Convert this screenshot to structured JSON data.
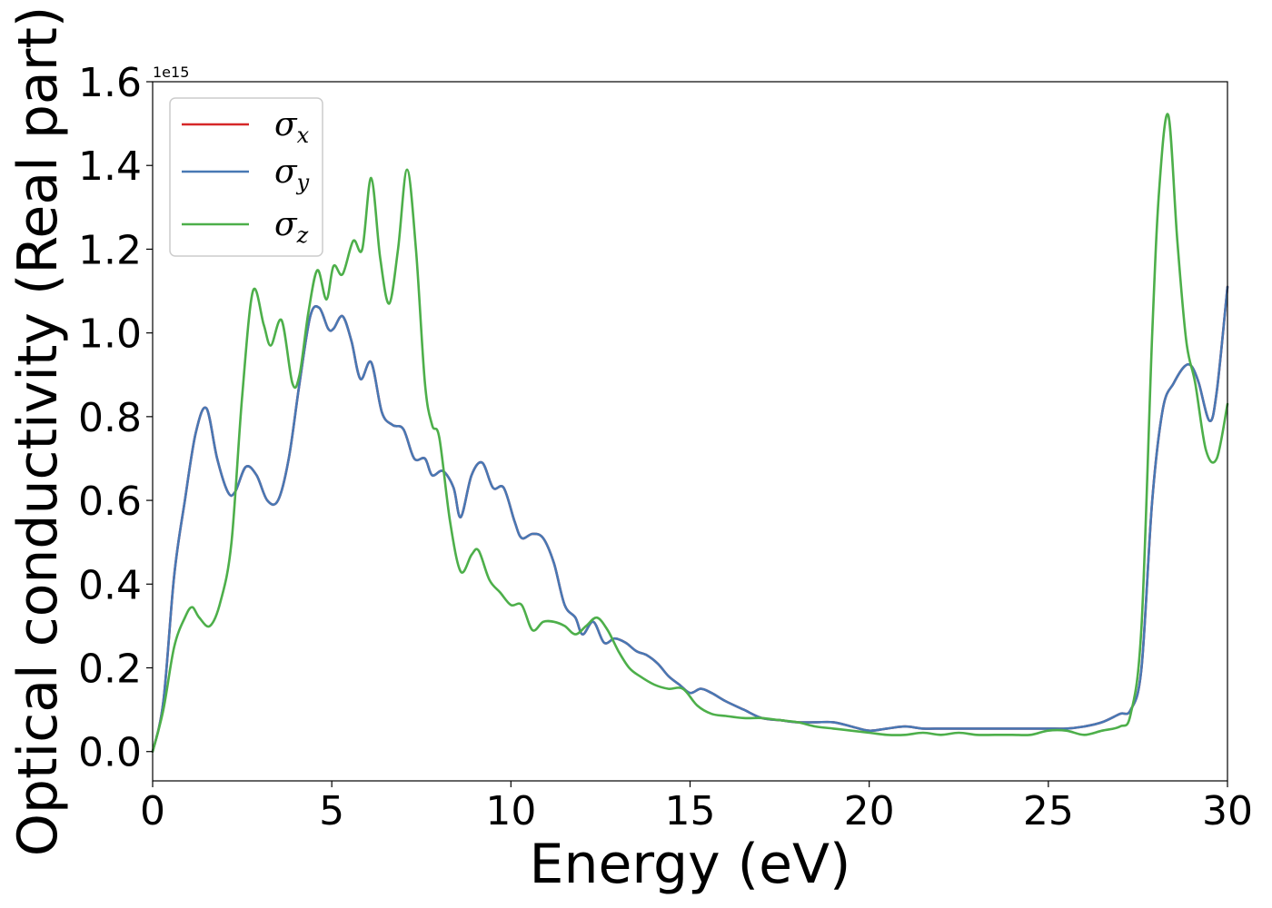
{
  "chart_data": {
    "type": "line",
    "xlabel": "Energy (eV)",
    "ylabel": "Optical conductivity (Real part)",
    "y_offset_label": "1e15",
    "xlim": [
      0,
      30
    ],
    "ylim": [
      -0.07,
      1.6
    ],
    "x_ticks": [
      0,
      5,
      10,
      15,
      20,
      25,
      30
    ],
    "x_tick_labels": [
      "0",
      "5",
      "10",
      "15",
      "20",
      "25",
      "30"
    ],
    "y_ticks": [
      0.0,
      0.2,
      0.4,
      0.6,
      0.8,
      1.0,
      1.2,
      1.4,
      1.6
    ],
    "y_tick_labels": [
      "0.0",
      "0.2",
      "0.4",
      "0.6",
      "0.8",
      "1.0",
      "1.2",
      "1.4",
      "1.6"
    ],
    "grid": false,
    "legend_position": "top-left",
    "series": [
      {
        "name": "σx",
        "symbol": "σ",
        "subscript": "x",
        "color": "#d62728",
        "x": [
          0,
          0.3,
          0.6,
          0.9,
          1.2,
          1.5,
          1.8,
          2.1,
          2.3,
          2.6,
          2.9,
          3.2,
          3.5,
          3.8,
          4.1,
          4.4,
          4.65,
          4.9,
          5.05,
          5.3,
          5.55,
          5.8,
          6.1,
          6.4,
          6.7,
          7.0,
          7.3,
          7.6,
          7.8,
          8.1,
          8.4,
          8.6,
          8.9,
          9.2,
          9.5,
          9.8,
          10.1,
          10.3,
          10.6,
          10.9,
          11.2,
          11.5,
          11.8,
          12.0,
          12.3,
          12.6,
          12.9,
          13.2,
          13.5,
          13.8,
          14.1,
          14.4,
          14.7,
          15.0,
          15.3,
          15.6,
          16.0,
          16.5,
          17.0,
          17.5,
          18.0,
          18.5,
          19.0,
          19.5,
          20.0,
          20.5,
          21.0,
          21.5,
          22.0,
          22.5,
          23.0,
          23.5,
          24.0,
          24.5,
          25.0,
          25.5,
          26.0,
          26.5,
          27.0,
          27.3,
          27.6,
          27.9,
          28.2,
          28.5,
          28.8,
          29.0,
          29.2,
          29.5,
          29.7,
          30.0
        ],
        "values": [
          0.0,
          0.12,
          0.42,
          0.6,
          0.76,
          0.82,
          0.7,
          0.62,
          0.62,
          0.68,
          0.66,
          0.6,
          0.6,
          0.7,
          0.88,
          1.04,
          1.06,
          1.01,
          1.01,
          1.04,
          0.98,
          0.89,
          0.93,
          0.81,
          0.78,
          0.77,
          0.7,
          0.7,
          0.66,
          0.67,
          0.63,
          0.56,
          0.66,
          0.69,
          0.63,
          0.63,
          0.55,
          0.51,
          0.52,
          0.51,
          0.45,
          0.35,
          0.32,
          0.28,
          0.31,
          0.26,
          0.27,
          0.26,
          0.24,
          0.23,
          0.21,
          0.18,
          0.16,
          0.14,
          0.15,
          0.14,
          0.12,
          0.1,
          0.08,
          0.075,
          0.07,
          0.07,
          0.07,
          0.06,
          0.05,
          0.055,
          0.06,
          0.055,
          0.055,
          0.055,
          0.055,
          0.055,
          0.055,
          0.055,
          0.055,
          0.055,
          0.06,
          0.07,
          0.09,
          0.1,
          0.2,
          0.6,
          0.82,
          0.88,
          0.92,
          0.92,
          0.88,
          0.79,
          0.86,
          1.11
        ]
      },
      {
        "name": "σy",
        "symbol": "σ",
        "subscript": "y",
        "color": "#4878b4",
        "x": [
          0,
          0.3,
          0.6,
          0.9,
          1.2,
          1.5,
          1.8,
          2.1,
          2.3,
          2.6,
          2.9,
          3.2,
          3.5,
          3.8,
          4.1,
          4.4,
          4.65,
          4.9,
          5.05,
          5.3,
          5.55,
          5.8,
          6.1,
          6.4,
          6.7,
          7.0,
          7.3,
          7.6,
          7.8,
          8.1,
          8.4,
          8.6,
          8.9,
          9.2,
          9.5,
          9.8,
          10.1,
          10.3,
          10.6,
          10.9,
          11.2,
          11.5,
          11.8,
          12.0,
          12.3,
          12.6,
          12.9,
          13.2,
          13.5,
          13.8,
          14.1,
          14.4,
          14.7,
          15.0,
          15.3,
          15.6,
          16.0,
          16.5,
          17.0,
          17.5,
          18.0,
          18.5,
          19.0,
          19.5,
          20.0,
          20.5,
          21.0,
          21.5,
          22.0,
          22.5,
          23.0,
          23.5,
          24.0,
          24.5,
          25.0,
          25.5,
          26.0,
          26.5,
          27.0,
          27.3,
          27.6,
          27.9,
          28.2,
          28.5,
          28.8,
          29.0,
          29.2,
          29.5,
          29.7,
          30.0
        ],
        "values": [
          0.0,
          0.12,
          0.42,
          0.6,
          0.76,
          0.82,
          0.7,
          0.62,
          0.62,
          0.68,
          0.66,
          0.6,
          0.6,
          0.7,
          0.88,
          1.04,
          1.06,
          1.01,
          1.01,
          1.04,
          0.98,
          0.89,
          0.93,
          0.81,
          0.78,
          0.77,
          0.7,
          0.7,
          0.66,
          0.67,
          0.63,
          0.56,
          0.66,
          0.69,
          0.63,
          0.63,
          0.55,
          0.51,
          0.52,
          0.51,
          0.45,
          0.35,
          0.32,
          0.28,
          0.31,
          0.26,
          0.27,
          0.26,
          0.24,
          0.23,
          0.21,
          0.18,
          0.16,
          0.14,
          0.15,
          0.14,
          0.12,
          0.1,
          0.08,
          0.075,
          0.07,
          0.07,
          0.07,
          0.06,
          0.05,
          0.055,
          0.06,
          0.055,
          0.055,
          0.055,
          0.055,
          0.055,
          0.055,
          0.055,
          0.055,
          0.055,
          0.06,
          0.07,
          0.09,
          0.1,
          0.2,
          0.6,
          0.82,
          0.88,
          0.92,
          0.92,
          0.88,
          0.79,
          0.86,
          1.11
        ]
      },
      {
        "name": "σz",
        "symbol": "σ",
        "subscript": "z",
        "color": "#4daf4a",
        "x": [
          0,
          0.3,
          0.6,
          0.9,
          1.1,
          1.3,
          1.6,
          1.9,
          2.2,
          2.5,
          2.8,
          3.1,
          3.3,
          3.6,
          3.9,
          4.1,
          4.35,
          4.6,
          4.85,
          5.05,
          5.3,
          5.6,
          5.85,
          6.1,
          6.35,
          6.6,
          6.85,
          7.1,
          7.35,
          7.6,
          7.8,
          8.0,
          8.3,
          8.6,
          8.9,
          9.1,
          9.4,
          9.7,
          10.0,
          10.3,
          10.6,
          10.9,
          11.2,
          11.5,
          11.8,
          12.1,
          12.4,
          12.7,
          13.0,
          13.3,
          13.6,
          14.0,
          14.4,
          14.8,
          15.2,
          15.6,
          16.0,
          16.5,
          17.0,
          17.5,
          18.0,
          18.5,
          19.0,
          19.5,
          20.0,
          20.5,
          21.0,
          21.5,
          22.0,
          22.5,
          23.0,
          23.5,
          24.0,
          24.5,
          25.0,
          25.5,
          26.0,
          26.5,
          27.0,
          27.3,
          27.6,
          27.9,
          28.1,
          28.35,
          28.6,
          28.85,
          29.1,
          29.4,
          29.7,
          30.0
        ],
        "values": [
          0.0,
          0.1,
          0.25,
          0.32,
          0.345,
          0.32,
          0.3,
          0.36,
          0.5,
          0.85,
          1.1,
          1.02,
          0.97,
          1.03,
          0.88,
          0.9,
          1.05,
          1.15,
          1.08,
          1.16,
          1.14,
          1.22,
          1.2,
          1.37,
          1.18,
          1.07,
          1.2,
          1.39,
          1.2,
          0.88,
          0.78,
          0.75,
          0.55,
          0.43,
          0.47,
          0.48,
          0.41,
          0.38,
          0.35,
          0.35,
          0.29,
          0.31,
          0.31,
          0.3,
          0.28,
          0.3,
          0.32,
          0.29,
          0.24,
          0.2,
          0.18,
          0.16,
          0.15,
          0.15,
          0.11,
          0.09,
          0.085,
          0.08,
          0.08,
          0.075,
          0.07,
          0.06,
          0.055,
          0.05,
          0.045,
          0.04,
          0.04,
          0.045,
          0.04,
          0.045,
          0.04,
          0.04,
          0.04,
          0.04,
          0.05,
          0.05,
          0.04,
          0.05,
          0.06,
          0.09,
          0.3,
          1.0,
          1.35,
          1.52,
          1.22,
          0.98,
          0.88,
          0.72,
          0.7,
          0.83
        ]
      }
    ]
  }
}
